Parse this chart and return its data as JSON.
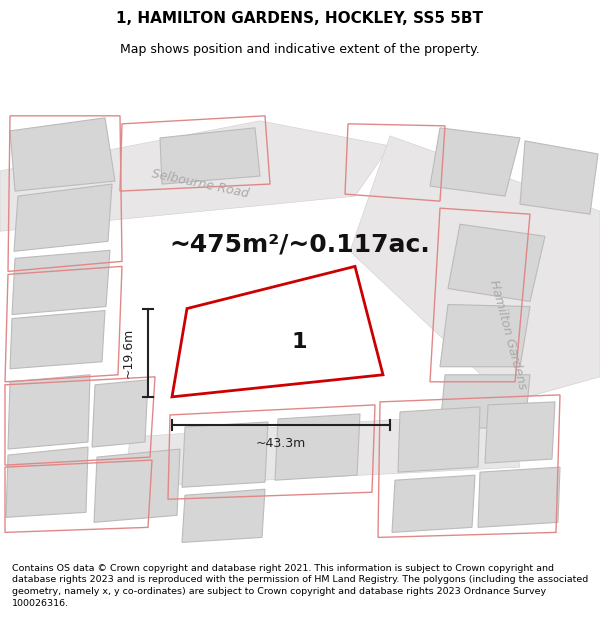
{
  "title": "1, HAMILTON GARDENS, HOCKLEY, SS5 5BT",
  "subtitle": "Map shows position and indicative extent of the property.",
  "area_text": "~475m²/~0.117ac.",
  "width_label": "~43.3m",
  "height_label": "~19.6m",
  "plot_number": "1",
  "road_label_1": "Selbourne Road",
  "road_label_2": "Hamilton Gardens",
  "map_bg": "#f2f1f1",
  "building_fill": "#d6d6d6",
  "building_edge": "#bbbbbb",
  "pink_line_color": "#e08888",
  "red_plot_edge": "#cc0000",
  "dim_color": "#222222",
  "road_text_color": "#aaaaaa",
  "footer_text": "Contains OS data © Crown copyright and database right 2021. This information is subject to Crown copyright and database rights 2023 and is reproduced with the permission of HM Land Registry. The polygons (including the associated geometry, namely x, y co-ordinates) are subject to Crown copyright and database rights 2023 Ordnance Survey 100026316.",
  "title_fontsize": 11,
  "subtitle_fontsize": 9,
  "footer_fontsize": 6.8,
  "area_fontsize": 18,
  "plot_num_fontsize": 16,
  "road_fontsize": 9,
  "dim_fontsize": 9
}
